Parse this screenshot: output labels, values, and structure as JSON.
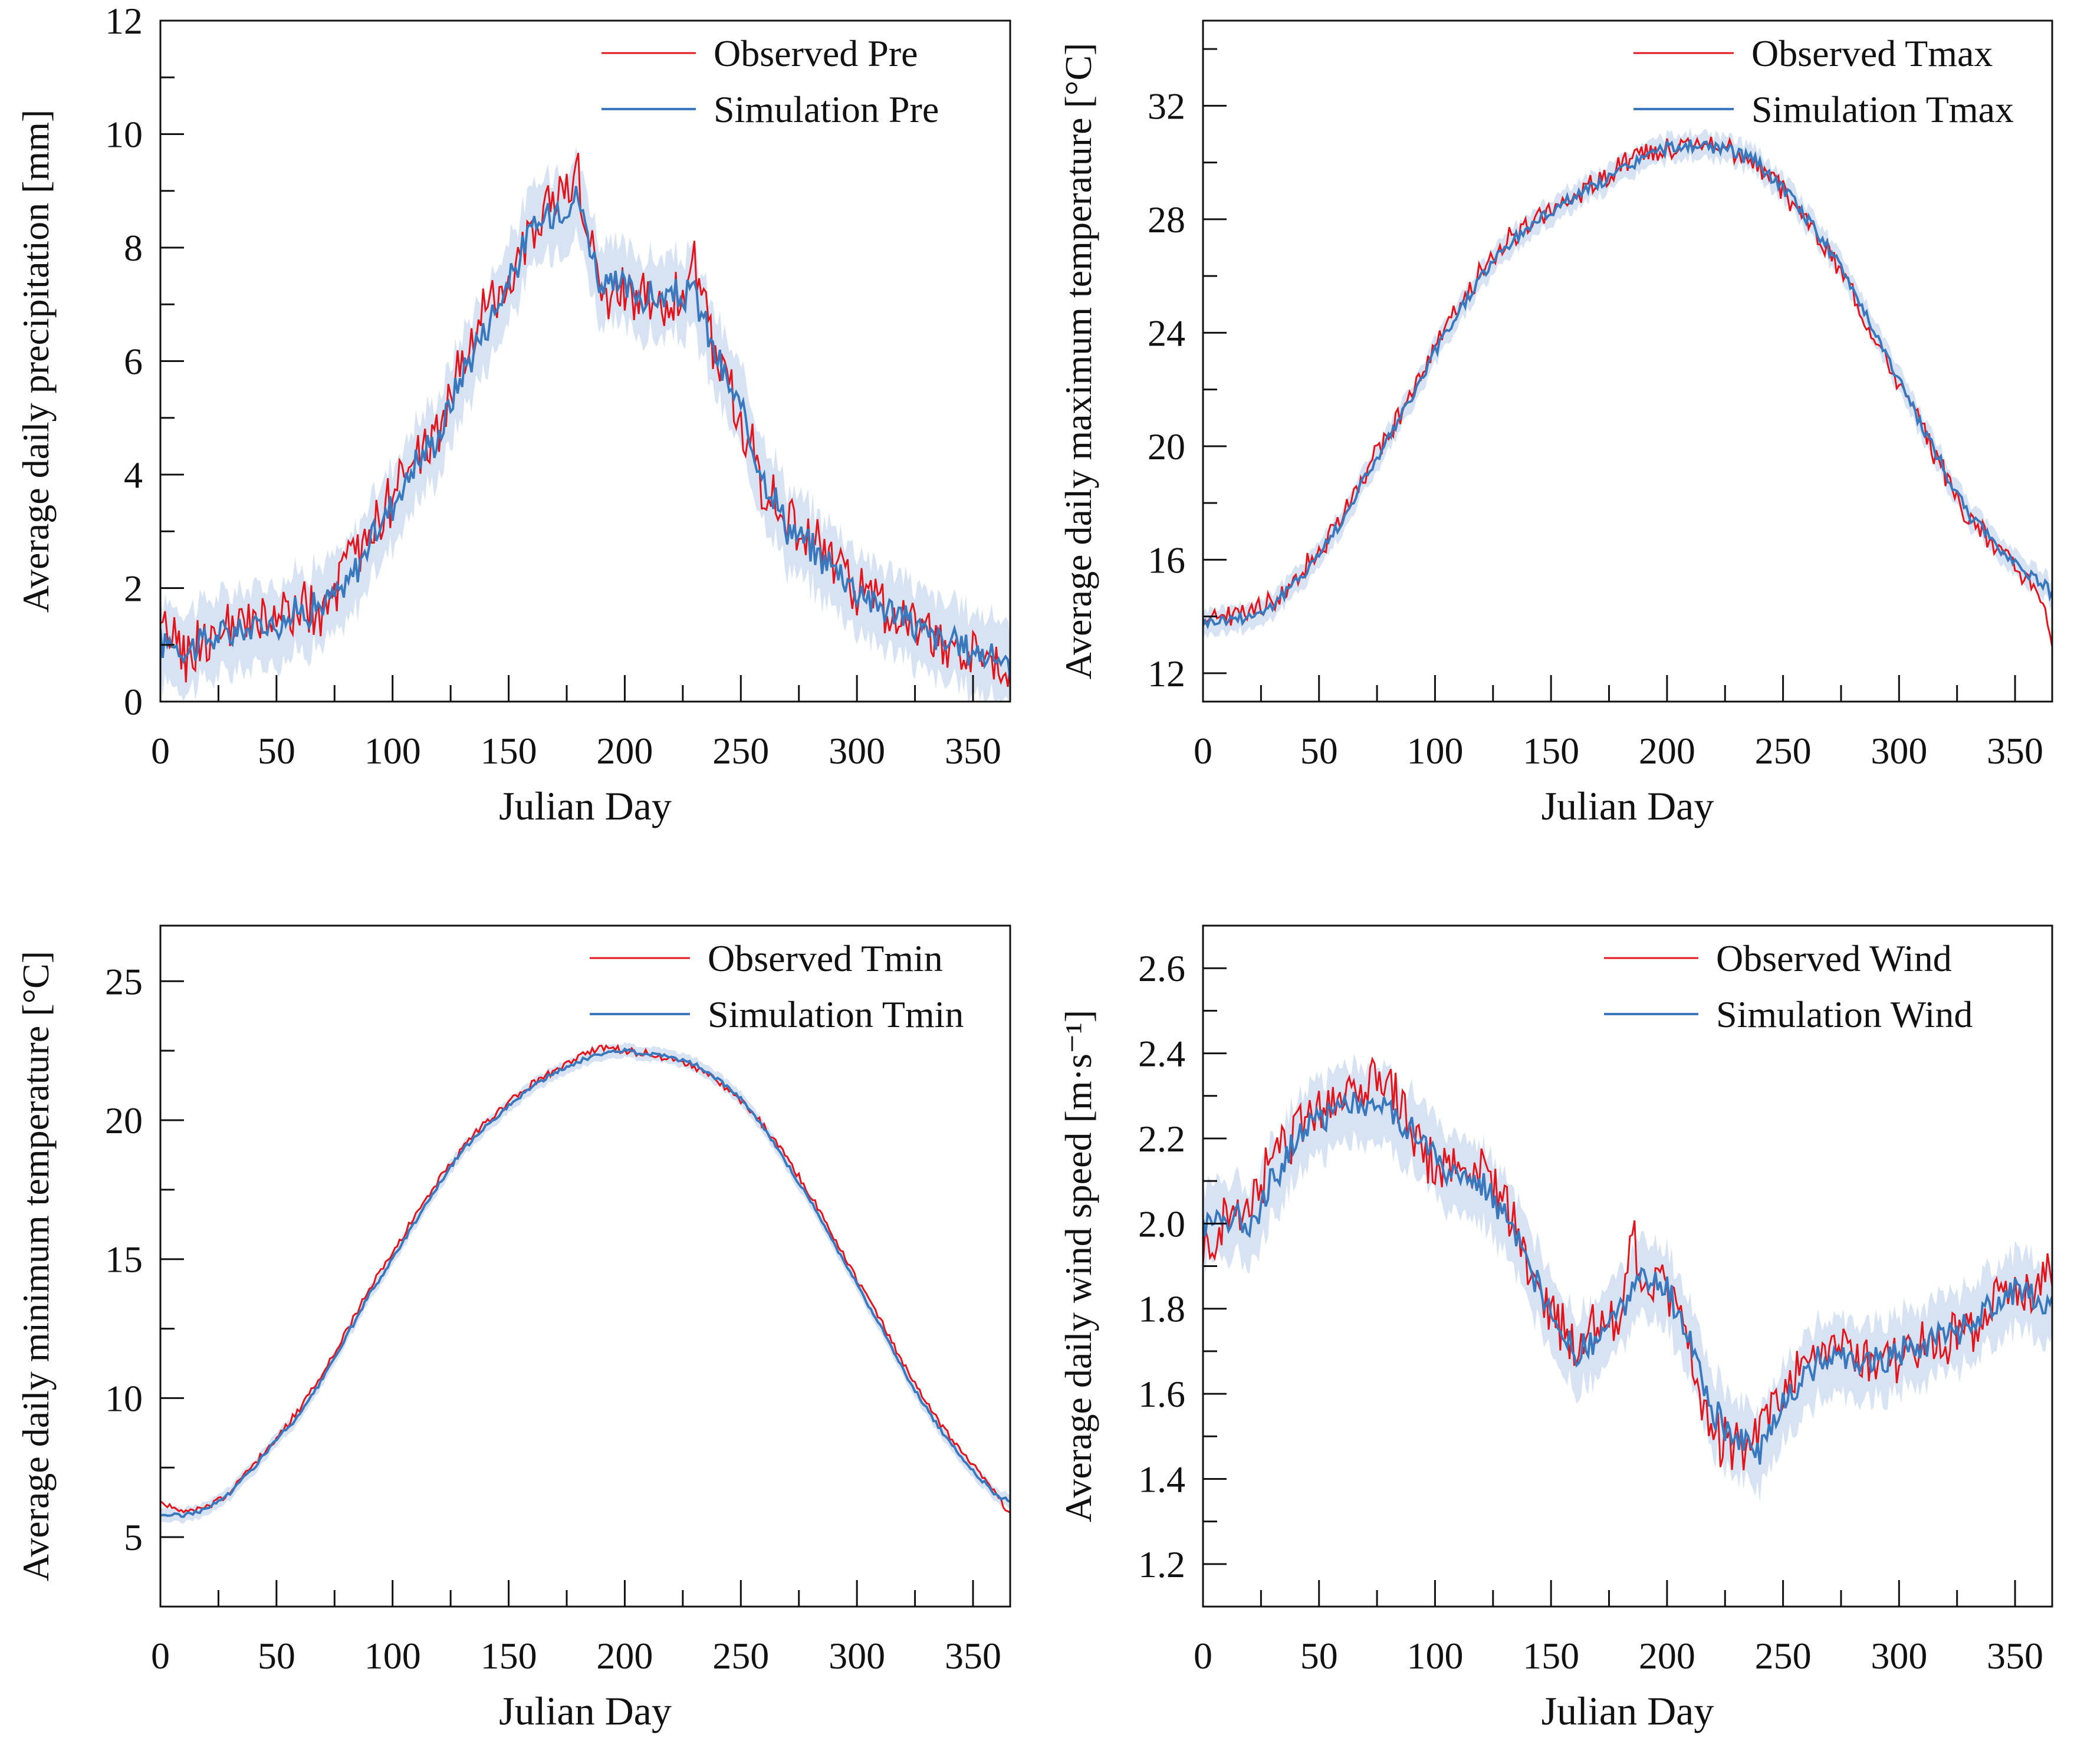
{
  "figure": {
    "name": "four-panel-climate-validation"
  },
  "colors": {
    "observed": "#e3141b",
    "simulation": "#3a78bd",
    "band": "#c9d9ee",
    "axis": "#111111"
  },
  "chart_data": [
    {
      "type": "line",
      "id": "pre",
      "xlabel": "Julian Day",
      "ylabel": "Average daily precipitation [mm]",
      "xlim": [
        0,
        366
      ],
      "ylim": [
        0,
        12
      ],
      "xticks": [
        0,
        50,
        100,
        150,
        200,
        250,
        300,
        350
      ],
      "yticks": [
        0,
        2,
        4,
        6,
        8,
        10,
        12
      ],
      "ytick_labels": [
        "0",
        "2",
        "4",
        "6",
        "8",
        "10",
        "12"
      ],
      "legend": {
        "position": "top-right",
        "entries": [
          "Observed Pre",
          "Simulation Pre"
        ]
      },
      "series": [
        {
          "name": "Observed Pre",
          "color": "#e3141b",
          "x": [
            0,
            5,
            10,
            20,
            30,
            40,
            50,
            60,
            70,
            80,
            90,
            100,
            110,
            120,
            130,
            140,
            150,
            160,
            170,
            180,
            190,
            200,
            210,
            220,
            230,
            240,
            250,
            260,
            270,
            280,
            290,
            300,
            310,
            320,
            330,
            340,
            350,
            360,
            366
          ],
          "y": [
            1.0,
            1.3,
            0.8,
            1.1,
            1.2,
            1.3,
            1.5,
            1.6,
            1.5,
            2.3,
            3.0,
            3.6,
            4.2,
            4.8,
            6.0,
            6.8,
            7.5,
            8.4,
            8.9,
            9.2,
            7.0,
            7.3,
            7.2,
            7.0,
            7.6,
            6.0,
            5.0,
            3.8,
            3.2,
            2.8,
            2.5,
            2.0,
            1.7,
            1.5,
            1.2,
            1.0,
            0.9,
            0.8,
            0.5
          ]
        },
        {
          "name": "Simulation Pre",
          "color": "#3a78bd",
          "x": [
            0,
            5,
            10,
            20,
            30,
            40,
            50,
            60,
            70,
            80,
            90,
            100,
            110,
            120,
            130,
            140,
            150,
            160,
            170,
            180,
            190,
            200,
            210,
            220,
            230,
            240,
            250,
            260,
            270,
            280,
            290,
            300,
            310,
            320,
            330,
            340,
            350,
            360,
            366
          ],
          "y": [
            1.0,
            1.1,
            0.9,
            1.1,
            1.2,
            1.3,
            1.4,
            1.6,
            1.7,
            2.0,
            2.8,
            3.5,
            4.2,
            4.7,
            5.8,
            6.6,
            7.4,
            8.3,
            8.7,
            8.9,
            7.3,
            7.3,
            7.1,
            7.1,
            7.2,
            6.0,
            5.1,
            4.0,
            3.1,
            2.7,
            2.4,
            2.0,
            1.7,
            1.5,
            1.2,
            1.0,
            0.9,
            0.8,
            0.6
          ]
        }
      ]
    },
    {
      "type": "line",
      "id": "tmax",
      "xlabel": "Julian Day",
      "ylabel": "Average daily maximum temperature [°C]",
      "xlim": [
        0,
        366
      ],
      "ylim": [
        11,
        35
      ],
      "xticks": [
        0,
        50,
        100,
        150,
        200,
        250,
        300,
        350
      ],
      "yticks": [
        12,
        16,
        20,
        24,
        28,
        32
      ],
      "ytick_labels": [
        "12",
        "16",
        "20",
        "24",
        "28",
        "32"
      ],
      "legend": {
        "position": "top-right",
        "entries": [
          "Observed Tmax",
          "Simulation Tmax"
        ]
      },
      "series": [
        {
          "name": "Observed Tmax",
          "color": "#e3141b",
          "x": [
            0,
            10,
            20,
            30,
            40,
            50,
            60,
            70,
            80,
            90,
            100,
            110,
            120,
            130,
            140,
            150,
            160,
            170,
            180,
            190,
            200,
            210,
            220,
            230,
            240,
            250,
            260,
            270,
            280,
            290,
            300,
            310,
            320,
            330,
            340,
            350,
            360,
            366
          ],
          "y": [
            14.0,
            14.0,
            14.2,
            14.5,
            15.3,
            16.3,
            17.5,
            19.0,
            20.5,
            21.8,
            23.5,
            24.8,
            26.2,
            27.2,
            27.8,
            28.4,
            28.8,
            29.3,
            29.8,
            30.3,
            30.5,
            30.8,
            30.6,
            30.3,
            29.8,
            29.0,
            28.0,
            26.8,
            25.5,
            23.8,
            22.2,
            20.6,
            19.0,
            17.5,
            16.6,
            15.8,
            15.0,
            13.2
          ]
        },
        {
          "name": "Simulation Tmax",
          "color": "#3a78bd",
          "x": [
            0,
            10,
            20,
            30,
            40,
            50,
            60,
            70,
            80,
            90,
            100,
            110,
            120,
            130,
            140,
            150,
            160,
            170,
            180,
            190,
            200,
            210,
            220,
            230,
            240,
            250,
            260,
            270,
            280,
            290,
            300,
            310,
            320,
            330,
            340,
            350,
            360,
            366
          ],
          "y": [
            13.8,
            13.9,
            14.0,
            14.4,
            15.2,
            16.2,
            17.4,
            18.9,
            20.3,
            21.7,
            23.3,
            24.7,
            26.0,
            27.0,
            27.7,
            28.3,
            28.8,
            29.2,
            29.7,
            30.2,
            30.5,
            30.6,
            30.5,
            30.4,
            29.9,
            29.1,
            28.1,
            26.9,
            25.6,
            24.0,
            22.3,
            20.7,
            19.1,
            17.6,
            16.7,
            15.9,
            15.3,
            14.8
          ]
        }
      ]
    },
    {
      "type": "line",
      "id": "tmin",
      "xlabel": "Julian Day",
      "ylabel": "Average daily minimum temperature [°C]",
      "xlim": [
        0,
        366
      ],
      "ylim": [
        2.5,
        27
      ],
      "xticks": [
        0,
        50,
        100,
        150,
        200,
        250,
        300,
        350
      ],
      "yticks": [
        5,
        10,
        15,
        20,
        25
      ],
      "ytick_labels": [
        "5",
        "10",
        "15",
        "20",
        "25"
      ],
      "legend": {
        "position": "top-right",
        "entries": [
          "Observed Tmin",
          "Simulation Tmin"
        ]
      },
      "series": [
        {
          "name": "Observed Tmin",
          "color": "#e3141b",
          "x": [
            0,
            10,
            20,
            30,
            40,
            50,
            60,
            70,
            80,
            90,
            100,
            110,
            120,
            130,
            140,
            150,
            160,
            170,
            180,
            190,
            200,
            210,
            220,
            230,
            240,
            250,
            260,
            270,
            280,
            290,
            300,
            310,
            320,
            330,
            340,
            350,
            360,
            366
          ],
          "y": [
            6.2,
            5.9,
            6.1,
            6.6,
            7.6,
            8.6,
            9.6,
            10.9,
            12.4,
            13.9,
            15.2,
            16.6,
            17.9,
            19.0,
            19.9,
            20.6,
            21.3,
            21.8,
            22.3,
            22.6,
            22.5,
            22.4,
            22.2,
            21.9,
            21.4,
            20.7,
            19.8,
            18.6,
            17.3,
            15.8,
            14.3,
            12.8,
            11.2,
            9.8,
            8.6,
            7.6,
            6.6,
            5.8
          ]
        },
        {
          "name": "Simulation Tmin",
          "color": "#3a78bd",
          "x": [
            0,
            10,
            20,
            30,
            40,
            50,
            60,
            70,
            80,
            90,
            100,
            110,
            120,
            130,
            140,
            150,
            160,
            170,
            180,
            190,
            200,
            210,
            220,
            230,
            240,
            250,
            260,
            270,
            280,
            290,
            300,
            310,
            320,
            330,
            340,
            350,
            360,
            366
          ],
          "y": [
            5.8,
            5.8,
            6.0,
            6.6,
            7.5,
            8.5,
            9.4,
            10.7,
            12.2,
            13.7,
            15.0,
            16.4,
            17.7,
            18.9,
            19.8,
            20.5,
            21.2,
            21.7,
            22.1,
            22.4,
            22.5,
            22.4,
            22.3,
            22.0,
            21.5,
            20.8,
            19.7,
            18.4,
            17.1,
            15.6,
            14.1,
            12.6,
            11.0,
            9.6,
            8.4,
            7.4,
            6.5,
            6.3
          ]
        }
      ]
    },
    {
      "type": "line",
      "id": "wind",
      "xlabel": "Julian Day",
      "ylabel": "Average daily wind speed [m·s⁻¹]",
      "xlim": [
        0,
        366
      ],
      "ylim": [
        1.1,
        2.7
      ],
      "xticks": [
        0,
        50,
        100,
        150,
        200,
        250,
        300,
        350
      ],
      "yticks": [
        1.2,
        1.4,
        1.6,
        1.8,
        2.0,
        2.2,
        2.4,
        2.6
      ],
      "ytick_labels": [
        "1.2",
        "1.4",
        "1.6",
        "1.8",
        "2.0",
        "2.2",
        "2.4",
        "2.6"
      ],
      "legend": {
        "position": "top-right",
        "entries": [
          "Observed Wind",
          "Simulation Wind"
        ]
      },
      "series": [
        {
          "name": "Observed Wind",
          "color": "#e3141b",
          "x": [
            0,
            10,
            20,
            30,
            40,
            50,
            60,
            70,
            80,
            90,
            100,
            110,
            120,
            130,
            140,
            150,
            160,
            170,
            180,
            185,
            190,
            200,
            210,
            220,
            230,
            240,
            250,
            260,
            270,
            280,
            290,
            300,
            310,
            320,
            330,
            340,
            350,
            360,
            366
          ],
          "y": [
            1.92,
            2.0,
            2.05,
            2.15,
            2.22,
            2.28,
            2.3,
            2.32,
            2.35,
            2.2,
            2.12,
            2.15,
            2.13,
            2.05,
            1.9,
            1.78,
            1.72,
            1.75,
            1.8,
            1.98,
            1.85,
            1.85,
            1.7,
            1.5,
            1.48,
            1.5,
            1.6,
            1.68,
            1.7,
            1.7,
            1.66,
            1.68,
            1.73,
            1.72,
            1.75,
            1.8,
            1.82,
            1.85,
            1.88
          ]
        },
        {
          "name": "Simulation Wind",
          "color": "#3a78bd",
          "x": [
            0,
            10,
            20,
            30,
            40,
            50,
            60,
            70,
            80,
            90,
            100,
            110,
            120,
            130,
            140,
            150,
            160,
            170,
            180,
            185,
            190,
            200,
            210,
            220,
            230,
            240,
            250,
            260,
            270,
            280,
            290,
            300,
            310,
            320,
            330,
            340,
            350,
            360,
            366
          ],
          "y": [
            2.0,
            2.02,
            2.0,
            2.1,
            2.2,
            2.25,
            2.28,
            2.28,
            2.27,
            2.22,
            2.15,
            2.1,
            2.1,
            2.02,
            1.9,
            1.78,
            1.7,
            1.72,
            1.8,
            1.84,
            1.86,
            1.85,
            1.72,
            1.55,
            1.5,
            1.45,
            1.58,
            1.65,
            1.7,
            1.68,
            1.68,
            1.7,
            1.72,
            1.74,
            1.76,
            1.8,
            1.84,
            1.82,
            1.8
          ]
        }
      ]
    }
  ]
}
